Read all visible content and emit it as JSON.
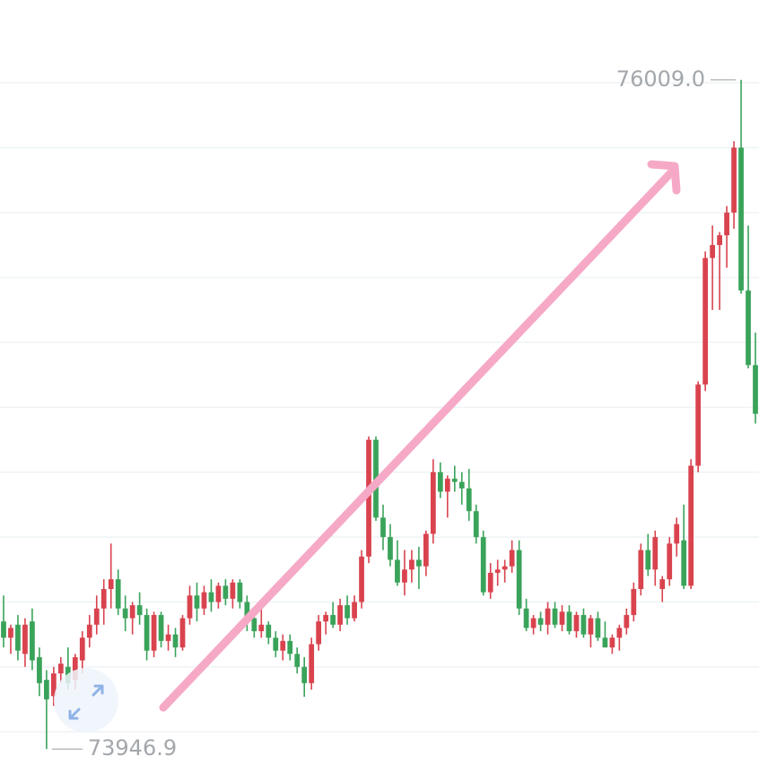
{
  "chart_data": {
    "type": "candlestick",
    "ylim": [
      73870,
      76255
    ],
    "grid": true,
    "grid_lines": [
      74000,
      74200,
      74400,
      74600,
      74800,
      75000,
      75200,
      75400,
      75600,
      75800,
      76000
    ],
    "up_color": "#d9434e",
    "down_color": "#3aa35a",
    "max_marker": {
      "value": 76009.0,
      "label": "76009.0"
    },
    "min_marker": {
      "value": 73946.9,
      "label": "73946.9"
    },
    "candles": [
      [
        74340,
        74420,
        74260,
        74290
      ],
      [
        74290,
        74330,
        74240,
        74320
      ],
      [
        74330,
        74360,
        74220,
        74250
      ],
      [
        74240,
        74350,
        74200,
        74330
      ],
      [
        74340,
        74380,
        74190,
        74220
      ],
      [
        74230,
        74260,
        74110,
        74150
      ],
      [
        74160,
        74190,
        73946.9,
        74100
      ],
      [
        74110,
        74200,
        74080,
        74180
      ],
      [
        74180,
        74230,
        74150,
        74210
      ],
      [
        74200,
        74260,
        74130,
        74150
      ],
      [
        74160,
        74240,
        74130,
        74230
      ],
      [
        74220,
        74310,
        74180,
        74290
      ],
      [
        74290,
        74360,
        74260,
        74330
      ],
      [
        74330,
        74420,
        74300,
        74380
      ],
      [
        74380,
        74470,
        74330,
        74440
      ],
      [
        74440,
        74580,
        74380,
        74470
      ],
      [
        74470,
        74500,
        74360,
        74380
      ],
      [
        74380,
        74420,
        74310,
        74350
      ],
      [
        74350,
        74400,
        74300,
        74390
      ],
      [
        74390,
        74430,
        74330,
        74360
      ],
      [
        74360,
        74380,
        74220,
        74250
      ],
      [
        74250,
        74370,
        74230,
        74360
      ],
      [
        74360,
        74370,
        74260,
        74280
      ],
      [
        74280,
        74330,
        74250,
        74300
      ],
      [
        74300,
        74320,
        74230,
        74260
      ],
      [
        74260,
        74360,
        74250,
        74350
      ],
      [
        74350,
        74450,
        74330,
        74420
      ],
      [
        74420,
        74460,
        74340,
        74380
      ],
      [
        74380,
        74450,
        74360,
        74430
      ],
      [
        74430,
        74470,
        74370,
        74400
      ],
      [
        74400,
        74460,
        74380,
        74450
      ],
      [
        74450,
        74470,
        74390,
        74410
      ],
      [
        74410,
        74470,
        74380,
        74460
      ],
      [
        74460,
        74470,
        74380,
        74400
      ],
      [
        74400,
        74420,
        74310,
        74350
      ],
      [
        74350,
        74360,
        74290,
        74310
      ],
      [
        74310,
        74380,
        74290,
        74330
      ],
      [
        74330,
        74340,
        74270,
        74290
      ],
      [
        74290,
        74310,
        74230,
        74250
      ],
      [
        74250,
        74300,
        74220,
        74280
      ],
      [
        74280,
        74300,
        74220,
        74240
      ],
      [
        74240,
        74260,
        74180,
        74200
      ],
      [
        74200,
        74230,
        74108,
        74150
      ],
      [
        74150,
        74290,
        74130,
        74270
      ],
      [
        74270,
        74360,
        74250,
        74340
      ],
      [
        74340,
        74370,
        74300,
        74360
      ],
      [
        74360,
        74400,
        74320,
        74330
      ],
      [
        74330,
        74410,
        74310,
        74390
      ],
      [
        74390,
        74420,
        74330,
        74350
      ],
      [
        74350,
        74420,
        74340,
        74400
      ],
      [
        74400,
        74560,
        74380,
        74540
      ],
      [
        74540,
        74910,
        74520,
        74900
      ],
      [
        74900,
        74910,
        74650,
        74660
      ],
      [
        74660,
        74700,
        74560,
        74600
      ],
      [
        74600,
        74640,
        74510,
        74530
      ],
      [
        74530,
        74590,
        74450,
        74460
      ],
      [
        74460,
        74560,
        74420,
        74500
      ],
      [
        74500,
        74560,
        74460,
        74530
      ],
      [
        74530,
        74570,
        74440,
        74510
      ],
      [
        74510,
        74620,
        74480,
        74610
      ],
      [
        74610,
        74840,
        74580,
        74800
      ],
      [
        74800,
        74830,
        74720,
        74740
      ],
      [
        74740,
        74790,
        74660,
        74780
      ],
      [
        74780,
        74820,
        74740,
        74770
      ],
      [
        74770,
        74800,
        74700,
        74750
      ],
      [
        74750,
        74810,
        74650,
        74680
      ],
      [
        74680,
        74700,
        74580,
        74600
      ],
      [
        74600,
        74620,
        74420,
        74430
      ],
      [
        74430,
        74520,
        74410,
        74490
      ],
      [
        74490,
        74530,
        74450,
        74500
      ],
      [
        74500,
        74530,
        74460,
        74510
      ],
      [
        74510,
        74590,
        74490,
        74560
      ],
      [
        74560,
        74590,
        74360,
        74380
      ],
      [
        74380,
        74410,
        74310,
        74320
      ],
      [
        74320,
        74360,
        74300,
        74350
      ],
      [
        74350,
        74370,
        74310,
        74330
      ],
      [
        74330,
        74400,
        74300,
        74380
      ],
      [
        74380,
        74400,
        74320,
        74330
      ],
      [
        74330,
        74390,
        74310,
        74370
      ],
      [
        74370,
        74390,
        74300,
        74310
      ],
      [
        74310,
        74370,
        74290,
        74360
      ],
      [
        74360,
        74380,
        74290,
        74300
      ],
      [
        74300,
        74360,
        74260,
        74350
      ],
      [
        74350,
        74370,
        74280,
        74290
      ],
      [
        74290,
        74340,
        74260,
        74260
      ],
      [
        74260,
        74300,
        74240,
        74290
      ],
      [
        74290,
        74330,
        74250,
        74320
      ],
      [
        74320,
        74380,
        74300,
        74360
      ],
      [
        74360,
        74460,
        74340,
        74440
      ],
      [
        74440,
        74580,
        74420,
        74560
      ],
      [
        74560,
        74610,
        74480,
        74500
      ],
      [
        74500,
        74620,
        74450,
        74600
      ],
      [
        74440,
        74480,
        74400,
        74470
      ],
      [
        74470,
        74600,
        74450,
        74580
      ],
      [
        74580,
        74660,
        74540,
        74640
      ],
      [
        74590,
        74700,
        74440,
        74450
      ],
      [
        74450,
        74840,
        74440,
        74820
      ],
      [
        74820,
        75080,
        74800,
        75070
      ],
      [
        75070,
        75480,
        75050,
        75460
      ],
      [
        75460,
        75560,
        75300,
        75500
      ],
      [
        75500,
        75540,
        75300,
        75530
      ],
      [
        75530,
        75620,
        75430,
        75600
      ],
      [
        75600,
        75820,
        75550,
        75800
      ],
      [
        75800,
        76009.0,
        75350,
        75360
      ],
      [
        75360,
        75560,
        75120,
        75130
      ],
      [
        75130,
        75230,
        74950,
        74980
      ]
    ]
  }
}
